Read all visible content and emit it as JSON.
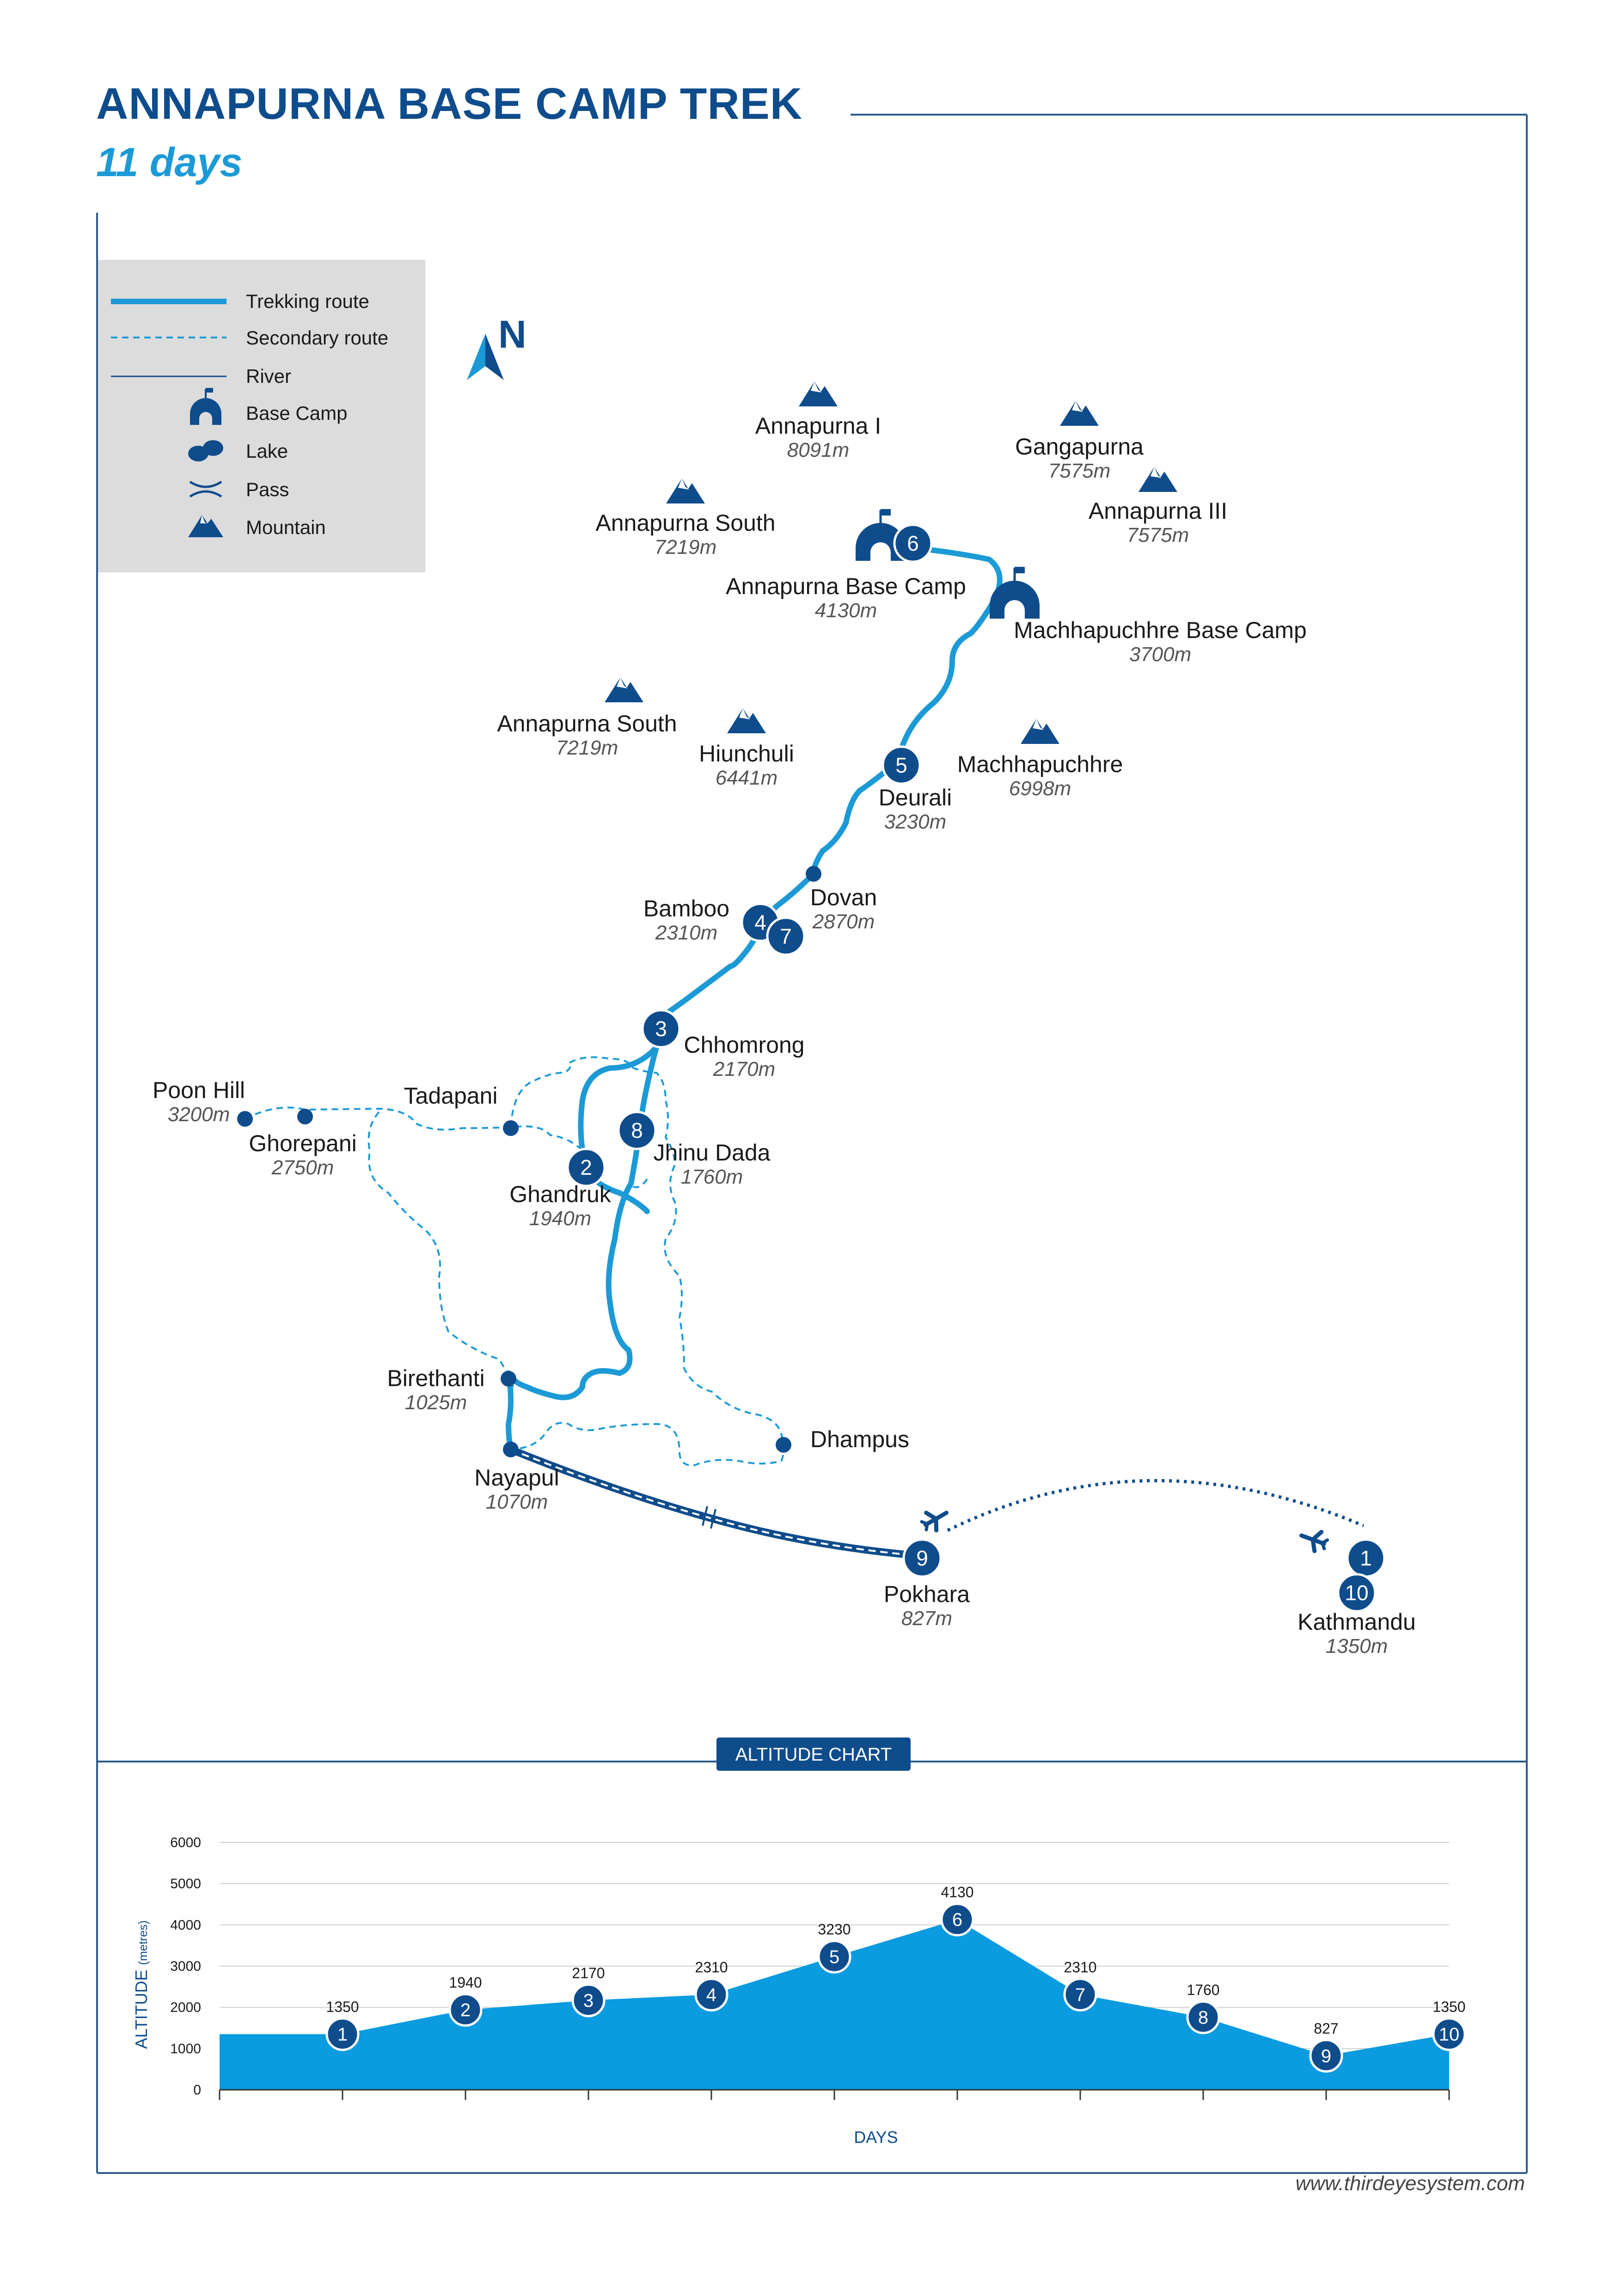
{
  "header": {
    "title": "ANNAPURNA BASE CAMP TREK",
    "subtitle": "11 days"
  },
  "legend": {
    "trekking_route": "Trekking route",
    "secondary_route": "Secondary route",
    "river": "River",
    "base_camp": "Base Camp",
    "lake": "Lake",
    "pass": "Pass",
    "mountain": "Mountain"
  },
  "compass": {
    "label": "N"
  },
  "mountains": [
    {
      "name": "Annapurna I",
      "alt": "8091m"
    },
    {
      "name": "Gangapurna",
      "alt": "7575m"
    },
    {
      "name": "Annapurna III",
      "alt": "7575m"
    },
    {
      "name": "Annapurna South",
      "alt": "7219m"
    },
    {
      "name": "Annapurna South",
      "alt": "7219m"
    },
    {
      "name": "Hiunchuli",
      "alt": "6441m"
    },
    {
      "name": "Machhapuchhre",
      "alt": "6998m"
    }
  ],
  "places": [
    {
      "name": "Annapurna Base Camp",
      "alt": "4130m"
    },
    {
      "name": "Machhapuchhre Base Camp",
      "alt": "3700m"
    },
    {
      "name": "Deurali",
      "alt": "3230m"
    },
    {
      "name": "Dovan",
      "alt": "2870m"
    },
    {
      "name": "Bamboo",
      "alt": "2310m"
    },
    {
      "name": "Chhomrong",
      "alt": "2170m"
    },
    {
      "name": "Poon Hill",
      "alt": "3200m"
    },
    {
      "name": "Ghorepani",
      "alt": "2750m"
    },
    {
      "name": "Tadapani",
      "alt": ""
    },
    {
      "name": "Jhinu Dada",
      "alt": "1760m"
    },
    {
      "name": "Ghandruk",
      "alt": "1940m"
    },
    {
      "name": "Birethanti",
      "alt": "1025m"
    },
    {
      "name": "Dhampus",
      "alt": ""
    },
    {
      "name": "Nayapul",
      "alt": "1070m"
    },
    {
      "name": "Pokhara",
      "alt": "827m"
    },
    {
      "name": "Kathmandu",
      "alt": "1350m"
    }
  ],
  "day_markers": [
    "1",
    "2",
    "3",
    "4",
    "5",
    "6",
    "7",
    "8",
    "9",
    "10"
  ],
  "altitude_chart_title": "ALTITUDE CHART",
  "chart_data": {
    "type": "area",
    "title": "ALTITUDE CHART",
    "xlabel": "DAYS",
    "ylabel": "ALTITUDE (metres)",
    "ylim": [
      0,
      6000
    ],
    "yticks": [
      0,
      1000,
      2000,
      3000,
      4000,
      5000,
      6000
    ],
    "x": [
      1,
      2,
      3,
      4,
      5,
      6,
      7,
      8,
      9,
      10
    ],
    "values": [
      1350,
      1940,
      2170,
      2310,
      3230,
      4130,
      2310,
      1760,
      827,
      1350
    ],
    "grid": true,
    "legend": "none"
  },
  "colors": {
    "navy": "#0f4c8c",
    "blue": "#1c9ad6",
    "frame": "#2a5a8a",
    "legend_bg": "#dcdcdc"
  },
  "footer": {
    "credit": "www.thirdeyesystem.com"
  }
}
